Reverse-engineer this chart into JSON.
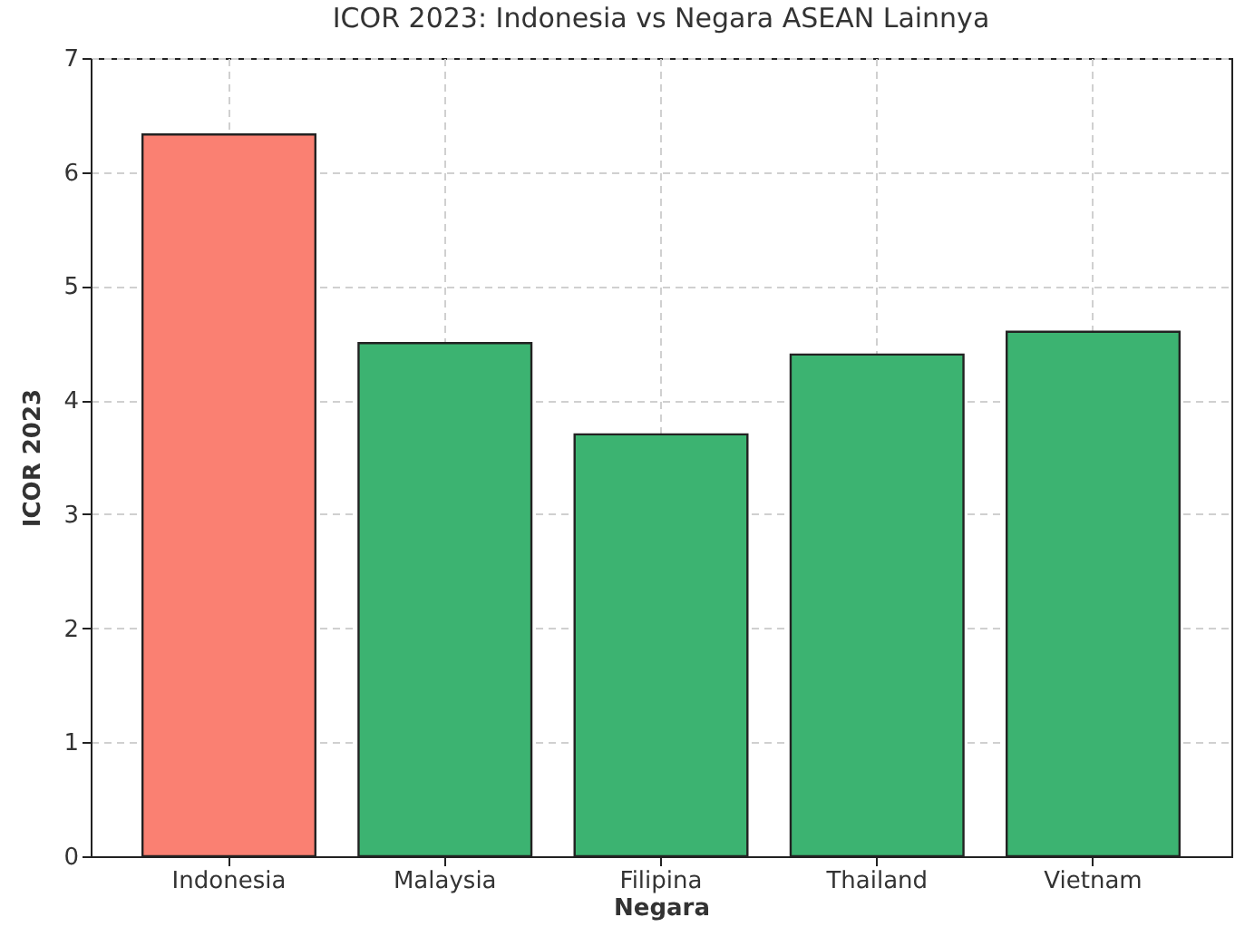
{
  "chart_data": {
    "type": "bar",
    "title": "ICOR 2023: Indonesia vs Negara ASEAN Lainnya",
    "xlabel": "Negara",
    "ylabel": "ICOR 2023",
    "categories": [
      "Indonesia",
      "Malaysia",
      "Filipina",
      "Thailand",
      "Vietnam"
    ],
    "values": [
      6.33,
      4.5,
      3.7,
      4.4,
      4.6
    ],
    "colors": [
      "#fa8072",
      "#3cb371",
      "#3cb371",
      "#3cb371",
      "#3cb371"
    ],
    "ylim": [
      0,
      7
    ],
    "yticks": [
      0,
      1,
      2,
      3,
      4,
      5,
      6,
      7
    ],
    "grid": true
  }
}
